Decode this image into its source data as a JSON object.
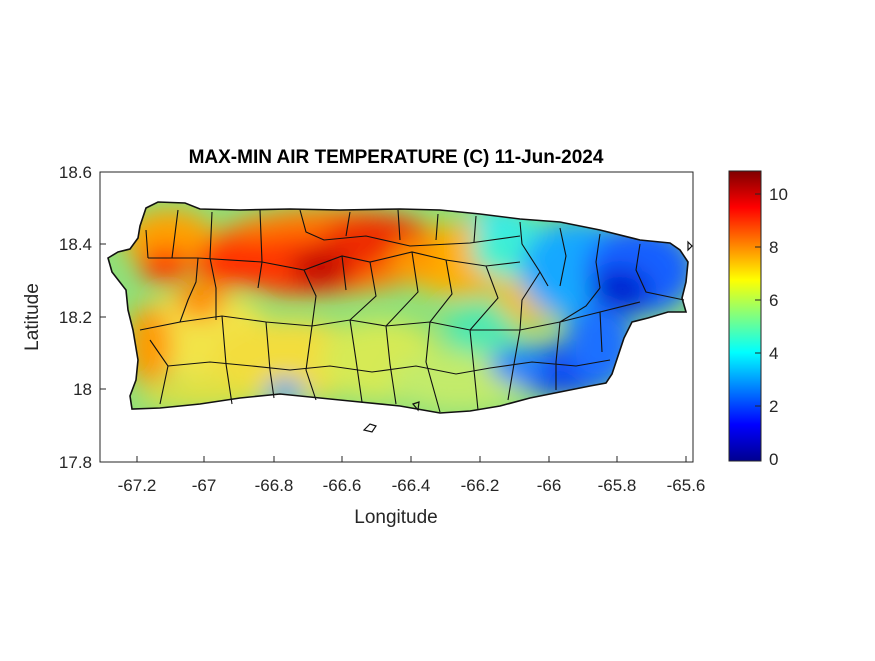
{
  "title": "MAX-MIN AIR TEMPERATURE (C) 11-Jun-2024",
  "xlabel": "Longitude",
  "ylabel": "Latitude",
  "xticks": [
    "-67.2",
    "-67",
    "-66.8",
    "-66.6",
    "-66.4",
    "-66.2",
    "-66",
    "-65.8",
    "-65.6"
  ],
  "yticks": [
    "18.6",
    "18.4",
    "18.2",
    "18",
    "17.8"
  ],
  "colorbar_ticks": [
    "10",
    "8",
    "6",
    "4",
    "2",
    "0"
  ],
  "colormap": "jet",
  "chart_data": {
    "type": "heatmap",
    "title": "MAX-MIN AIR TEMPERATURE (C) 11-Jun-2024",
    "xlabel": "Longitude",
    "ylabel": "Latitude",
    "xlim": [
      -67.3,
      -65.58
    ],
    "ylim": [
      17.8,
      18.6
    ],
    "clim": [
      0,
      11
    ],
    "colorbar_ticks": [
      0,
      2,
      4,
      6,
      8,
      10
    ],
    "colormap": "jet",
    "region": "Puerto Rico",
    "hot_spots": [
      {
        "lon": -66.68,
        "lat": 18.34,
        "value": 10.3
      },
      {
        "lon": -66.55,
        "lat": 18.41,
        "value": 9.8
      },
      {
        "lon": -66.92,
        "lat": 18.35,
        "value": 9.5
      },
      {
        "lon": -67.13,
        "lat": 18.36,
        "value": 9.0
      },
      {
        "lon": -66.35,
        "lat": 18.37,
        "value": 8.5
      }
    ],
    "cold_spots": [
      {
        "lon": -65.8,
        "lat": 18.29,
        "value": 1.2
      },
      {
        "lon": -65.88,
        "lat": 18.02,
        "value": 1.5
      },
      {
        "lon": -66.03,
        "lat": 18.06,
        "value": 2.2
      },
      {
        "lon": -65.7,
        "lat": 18.25,
        "value": 2.0
      },
      {
        "lon": -65.75,
        "lat": 18.36,
        "value": 2.5
      }
    ]
  }
}
